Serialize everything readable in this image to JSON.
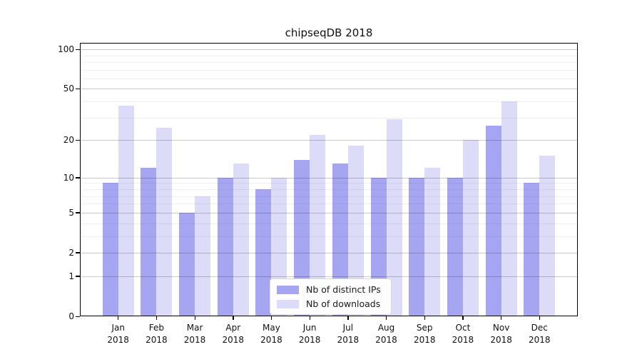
{
  "title": "chipseqDB 2018",
  "legend": {
    "items": [
      {
        "label": "Nb of distinct IPs",
        "color": "#a5a5f2"
      },
      {
        "label": "Nb of downloads",
        "color": "#dcdcf8"
      }
    ]
  },
  "chart_data": {
    "type": "bar",
    "title": "chipseqDB 2018",
    "categories": [
      "Jan",
      "Feb",
      "Mar",
      "Apr",
      "May",
      "Jun",
      "Jul",
      "Aug",
      "Sep",
      "Oct",
      "Nov",
      "Dec"
    ],
    "category_year": "2018",
    "series": [
      {
        "name": "Nb of distinct IPs",
        "color": "#a5a5f2",
        "values": [
          9,
          12,
          5,
          10,
          8,
          14,
          13,
          10,
          10,
          10,
          26,
          9
        ]
      },
      {
        "name": "Nb of downloads",
        "color": "#dcdcf8",
        "values": [
          37,
          25,
          7,
          13,
          10,
          22,
          18,
          29,
          12,
          20,
          40,
          15
        ]
      }
    ],
    "xlabel": "",
    "ylabel": "",
    "yscale": "symlog",
    "ylim": [
      0,
      112
    ],
    "yticks": [
      0,
      1,
      2,
      5,
      10,
      20,
      50,
      100
    ],
    "minor_yticks": [
      3,
      4,
      6,
      7,
      8,
      9,
      30,
      40,
      60,
      70,
      80,
      90
    ],
    "grid": true,
    "legend_position": "lower center"
  }
}
